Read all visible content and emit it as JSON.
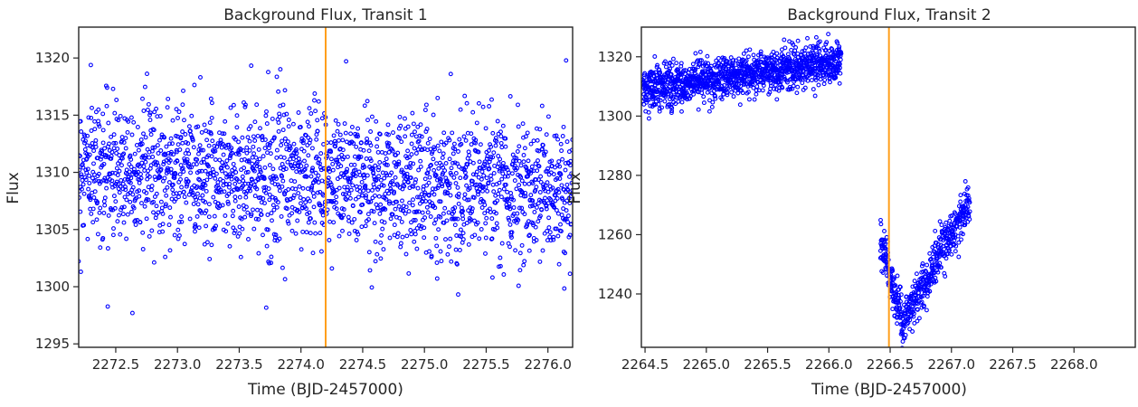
{
  "chart_data": [
    {
      "type": "scatter",
      "title": "Background Flux, Transit 1",
      "xlabel": "Time (BJD-2457000)",
      "ylabel": "Flux",
      "xlim": [
        2272.2,
        2276.2
      ],
      "ylim": [
        1294.7,
        1322.7
      ],
      "xticks": [
        2272.5,
        2273.0,
        2273.5,
        2274.0,
        2274.5,
        2275.0,
        2275.5,
        2276.0
      ],
      "xtick_labels": [
        "2272.5",
        "2273.0",
        "2273.5",
        "2274.0",
        "2274.5",
        "2275.0",
        "2275.5",
        "2276.0"
      ],
      "yticks": [
        1295,
        1300,
        1305,
        1310,
        1315,
        1320
      ],
      "ytick_labels": [
        "1295",
        "1300",
        "1305",
        "1310",
        "1315",
        "1320"
      ],
      "vline_x": 2274.2,
      "grid": false,
      "marker_color": "#0000ff",
      "vline_color": "#ff9f1c",
      "series": [
        {
          "segments": [
            {
              "x_start": 2272.2,
              "x_end": 2276.2,
              "y_start": 1310.5,
              "y_end": 1308.5,
              "scatter": 3.0,
              "count": 2200
            }
          ]
        }
      ]
    },
    {
      "type": "scatter",
      "title": "Background Flux, Transit 2",
      "xlabel": "Time (BJD-2457000)",
      "ylabel": "Flux",
      "xlim": [
        2264.47,
        2268.5
      ],
      "ylim": [
        1222.0,
        1330.0
      ],
      "xticks": [
        2264.5,
        2265.0,
        2265.5,
        2266.0,
        2266.5,
        2267.0,
        2267.5,
        2268.0
      ],
      "xtick_labels": [
        "2264.5",
        "2265.0",
        "2265.5",
        "2266.0",
        "2266.5",
        "2267.0",
        "2267.5",
        "2268.0"
      ],
      "yticks": [
        1240,
        1260,
        1280,
        1300,
        1320
      ],
      "ytick_labels": [
        "1240",
        "1260",
        "1280",
        "1300",
        "1320"
      ],
      "vline_x": 2266.49,
      "grid": false,
      "marker_color": "#0000ff",
      "vline_color": "#ff9f1c",
      "series": [
        {
          "segments": [
            {
              "x_start": 2264.48,
              "x_end": 2266.1,
              "y_start": 1309.0,
              "y_end": 1318.5,
              "scatter": 3.5,
              "count": 1300
            },
            {
              "x_start": 2266.42,
              "x_end": 2266.6,
              "y_start": 1258.0,
              "y_end": 1230.0,
              "scatter": 4.0,
              "count": 140
            },
            {
              "x_start": 2266.6,
              "x_end": 2267.15,
              "y_start": 1230.0,
              "y_end": 1272.0,
              "scatter": 4.0,
              "count": 380
            }
          ]
        }
      ]
    }
  ]
}
